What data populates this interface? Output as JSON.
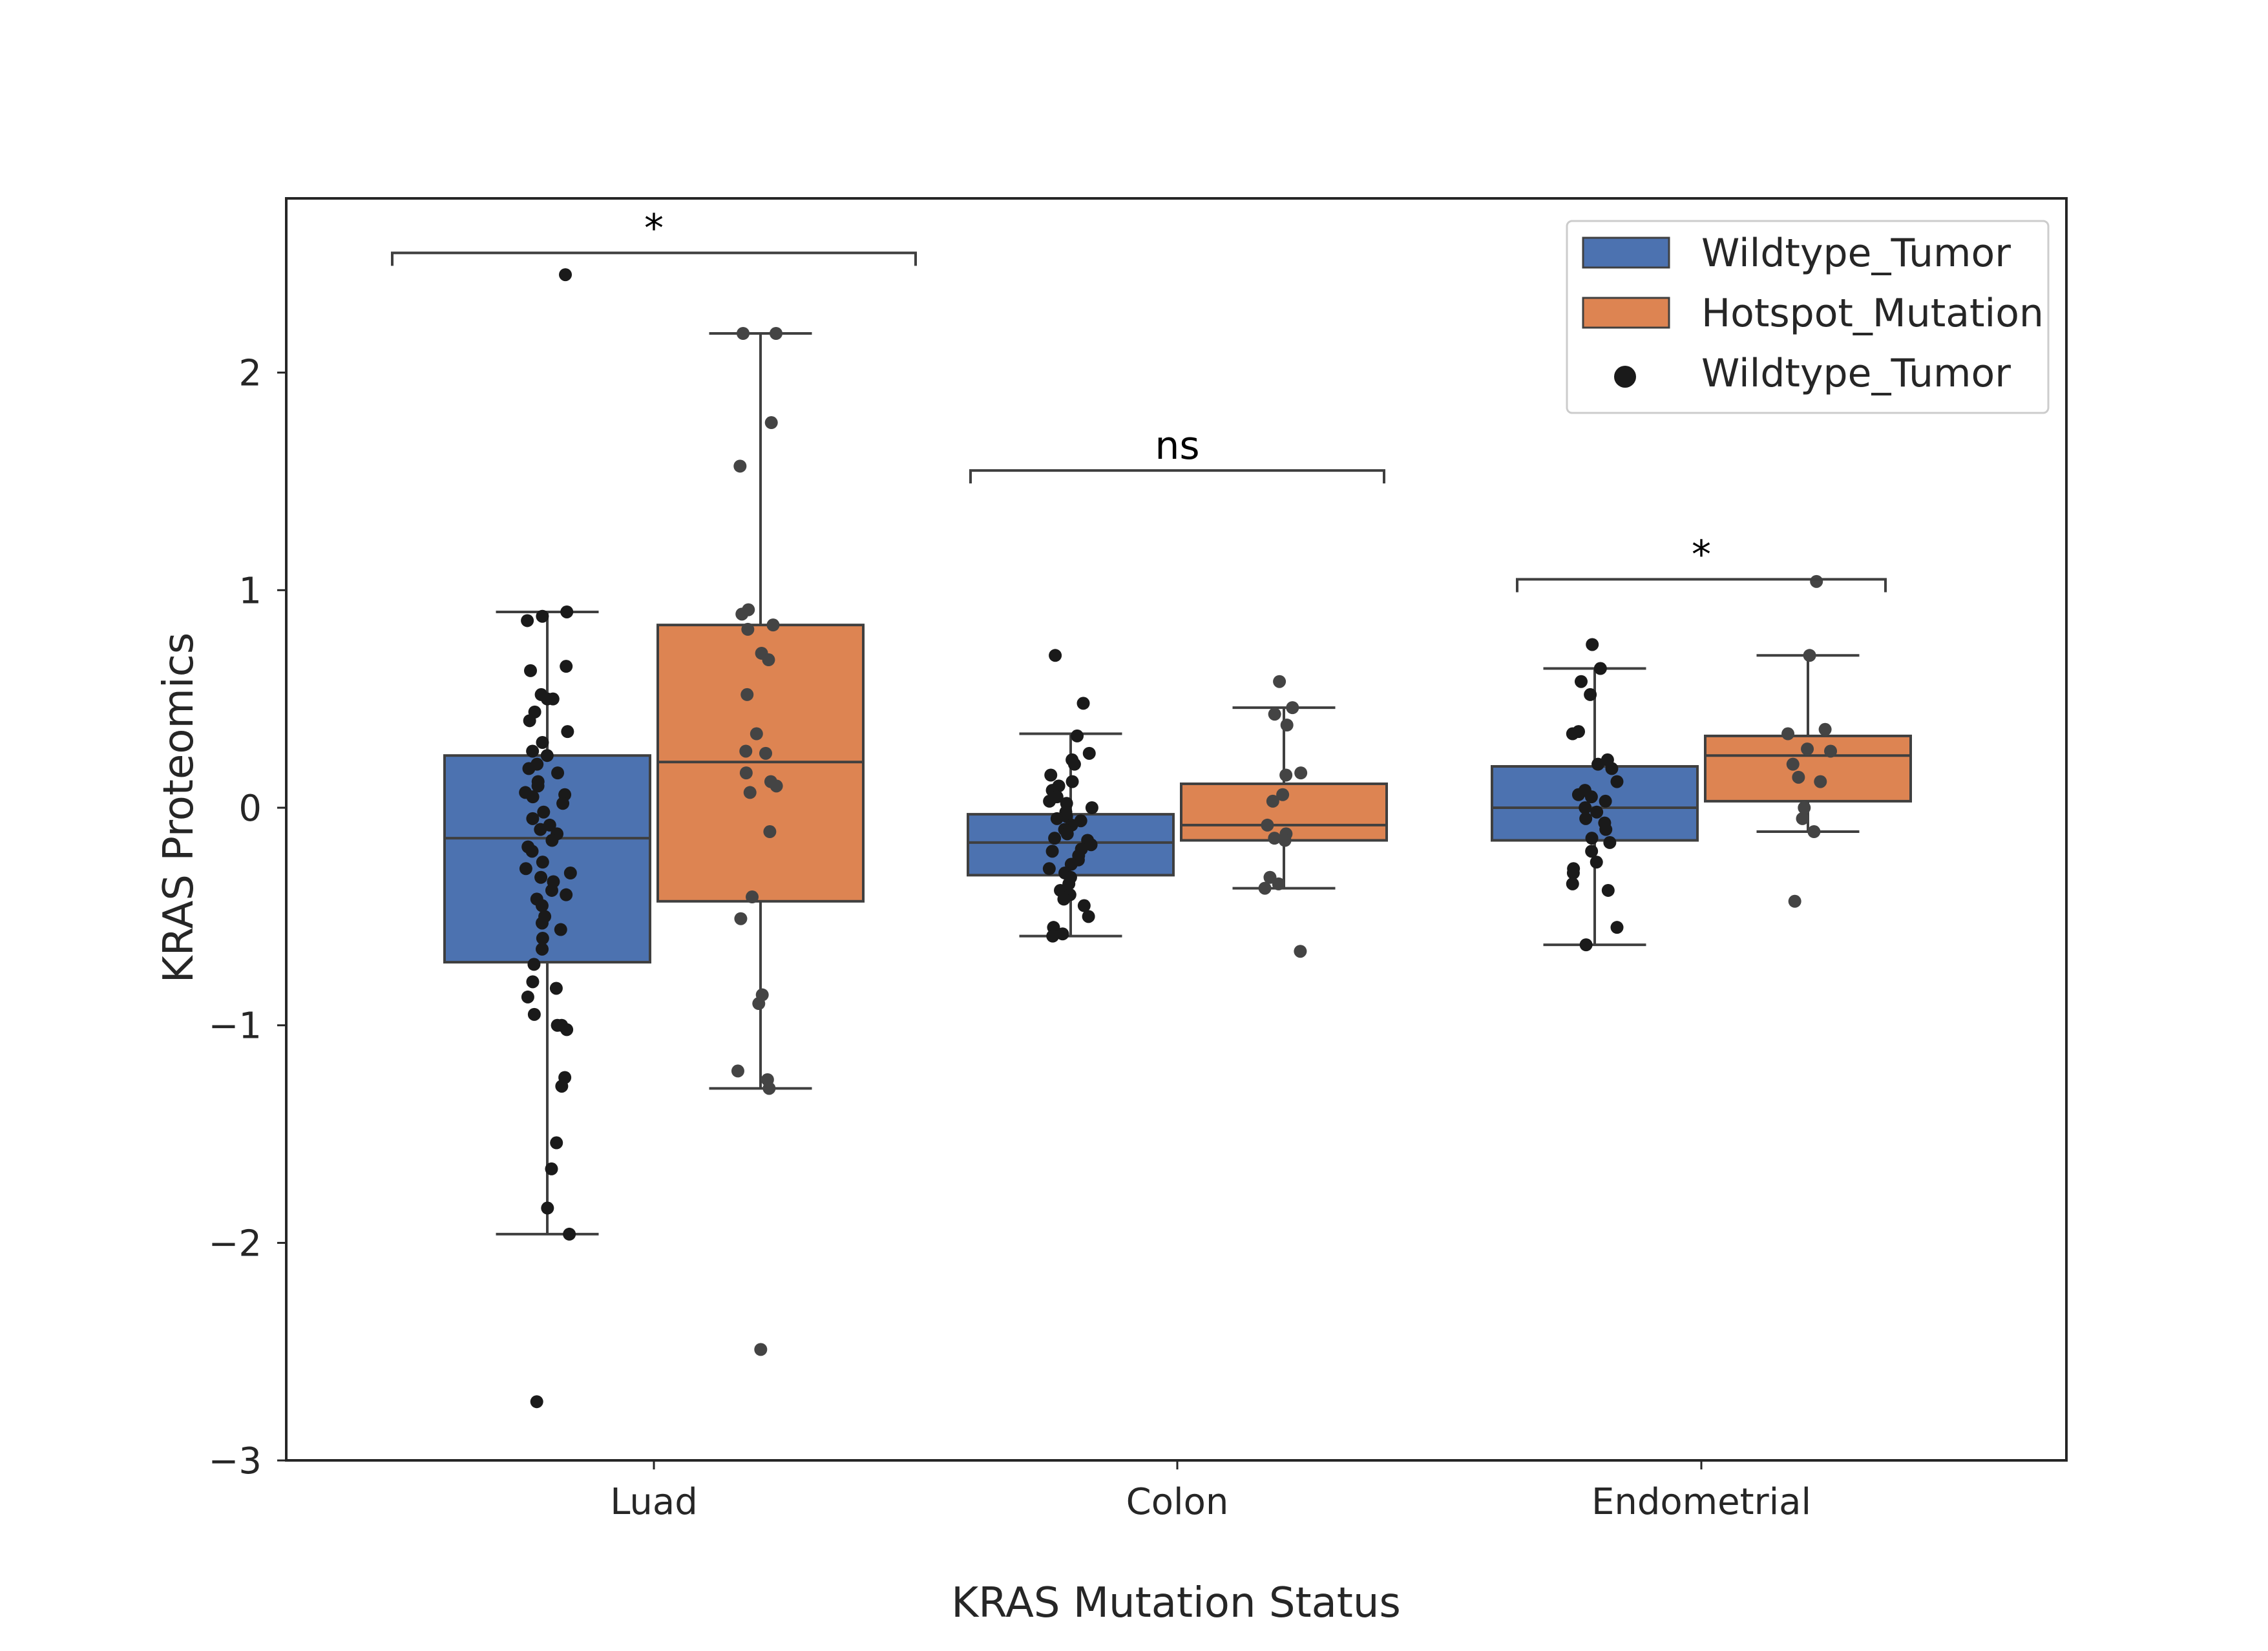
{
  "chart_data": {
    "type": "box",
    "xlabel": "KRAS Mutation Status",
    "ylabel": "KRAS Proteomics",
    "ylim": [
      -3,
      2.65
    ],
    "yticks": [
      -3,
      -2,
      -1,
      0,
      1,
      2
    ],
    "ytick_labels": [
      "−3",
      "−2",
      "−1",
      "0",
      "1",
      "2"
    ],
    "grid": false,
    "legend_position": "top-right",
    "legend": [
      {
        "label": "Wildtype_Tumor",
        "kind": "patch",
        "color": "#4c72b0"
      },
      {
        "label": "Hotspot_Mutation",
        "kind": "patch",
        "color": "#dd8452"
      },
      {
        "label": "Wildtype_Tumor",
        "kind": "dot",
        "color": "#1a1a1a"
      }
    ],
    "categories": [
      "Luad",
      "Colon",
      "Endometrial"
    ],
    "series": [
      {
        "name": "Wildtype_Tumor",
        "color": "#4c72b0",
        "boxes": [
          {
            "whisker_low": -1.96,
            "q1": -0.71,
            "median": -0.14,
            "q3": 0.24,
            "whisker_high": 0.9
          },
          {
            "whisker_low": -0.59,
            "q1": -0.31,
            "median": -0.16,
            "q3": -0.03,
            "whisker_high": 0.34
          },
          {
            "whisker_low": -0.63,
            "q1": -0.15,
            "median": 0.0,
            "q3": 0.19,
            "whisker_high": 0.64
          }
        ],
        "points": [
          [
            2.45,
            0.9,
            0.86,
            0.88,
            0.65,
            0.63,
            0.52,
            0.5,
            0.5,
            0.44,
            0.4,
            0.35,
            0.3,
            0.26,
            0.24,
            0.2,
            0.18,
            0.16,
            0.12,
            0.1,
            0.07,
            0.06,
            0.05,
            0.02,
            -0.02,
            -0.05,
            -0.08,
            -0.1,
            -0.12,
            -0.15,
            -0.18,
            -0.2,
            -0.25,
            -0.28,
            -0.3,
            -0.32,
            -0.34,
            -0.38,
            -0.4,
            -0.42,
            -0.45,
            -0.5,
            -0.53,
            -0.56,
            -0.6,
            -0.65,
            -0.72,
            -0.8,
            -0.83,
            -0.87,
            -0.95,
            -1.0,
            -1.0,
            -1.02,
            -1.24,
            -1.28,
            -1.54,
            -1.66,
            -1.84,
            -1.96,
            -2.73
          ],
          [
            0.7,
            0.48,
            0.33,
            0.25,
            0.22,
            0.2,
            0.15,
            0.12,
            0.1,
            0.08,
            0.05,
            0.03,
            0.02,
            0.0,
            -0.02,
            -0.04,
            -0.05,
            -0.06,
            -0.08,
            -0.1,
            -0.12,
            -0.14,
            -0.15,
            -0.17,
            -0.19,
            -0.2,
            -0.22,
            -0.24,
            -0.26,
            -0.28,
            -0.3,
            -0.32,
            -0.35,
            -0.38,
            -0.4,
            -0.42,
            -0.45,
            -0.5,
            -0.55,
            -0.58,
            -0.59
          ],
          [
            0.75,
            0.64,
            0.58,
            0.52,
            0.35,
            0.34,
            0.22,
            0.2,
            0.18,
            0.12,
            0.08,
            0.06,
            0.05,
            0.03,
            0.0,
            -0.02,
            -0.05,
            -0.07,
            -0.1,
            -0.14,
            -0.16,
            -0.2,
            -0.25,
            -0.28,
            -0.3,
            -0.35,
            -0.38,
            -0.55,
            -0.63
          ]
        ]
      },
      {
        "name": "Hotspot_Mutation",
        "color": "#dd8452",
        "boxes": [
          {
            "whisker_low": -1.29,
            "q1": -0.43,
            "median": 0.21,
            "q3": 0.84,
            "whisker_high": 2.18
          },
          {
            "whisker_low": -0.37,
            "q1": -0.15,
            "median": -0.08,
            "q3": 0.11,
            "whisker_high": 0.46
          },
          {
            "whisker_low": -0.11,
            "q1": 0.03,
            "median": 0.24,
            "q3": 0.33,
            "whisker_high": 0.7
          }
        ],
        "points": [
          [
            2.18,
            2.18,
            1.77,
            1.57,
            0.91,
            0.89,
            0.84,
            0.82,
            0.71,
            0.68,
            0.52,
            0.34,
            0.26,
            0.25,
            0.16,
            0.12,
            0.1,
            0.07,
            -0.11,
            -0.41,
            -0.51,
            -0.86,
            -0.9,
            -1.21,
            -1.25,
            -1.29,
            -2.49
          ],
          [
            0.58,
            0.46,
            0.43,
            0.38,
            0.16,
            0.15,
            0.06,
            0.03,
            -0.08,
            -0.12,
            -0.14,
            -0.15,
            -0.32,
            -0.35,
            -0.37,
            -0.66
          ],
          [
            1.04,
            0.7,
            0.36,
            0.34,
            0.27,
            0.26,
            0.2,
            0.14,
            0.12,
            0.0,
            -0.05,
            -0.11,
            -0.43
          ]
        ]
      }
    ],
    "significance": [
      {
        "category": "Luad",
        "label": "*",
        "y": 2.55
      },
      {
        "category": "Colon",
        "label": "ns",
        "y": 1.55
      },
      {
        "category": "Endometrial",
        "label": "*",
        "y": 1.05
      }
    ]
  }
}
